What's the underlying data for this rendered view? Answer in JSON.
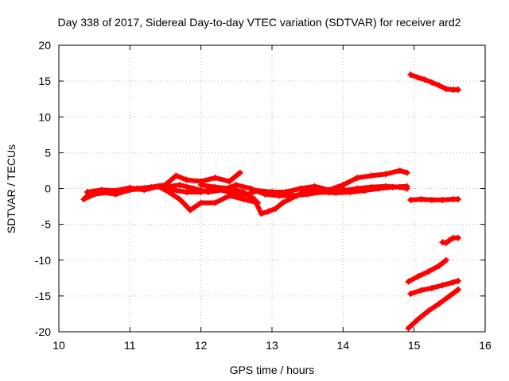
{
  "chart_data": {
    "type": "scatter",
    "title": "Day 338 of 2017, Sidereal Day-to-day VTEC variation (SDTVAR) for receiver ard2",
    "xlabel": "GPS time / hours",
    "ylabel": "SDTVAR / TECUs",
    "xlim": [
      10,
      16
    ],
    "ylim": [
      -20,
      20
    ],
    "xticks": [
      "10",
      "11",
      "12",
      "13",
      "14",
      "15",
      "16"
    ],
    "yticks": [
      "20",
      "15",
      "10",
      "5",
      "0",
      "-5",
      "-10",
      "-15",
      "-20"
    ],
    "grid": true,
    "marker": "plus",
    "color": "#ff0000",
    "series": [
      {
        "x": [
          10.35,
          10.5,
          10.7,
          10.9,
          11.1,
          11.3,
          11.5,
          11.65,
          11.8,
          12.0,
          12.2,
          12.4,
          12.55
        ],
        "y": [
          -1.5,
          -0.8,
          -0.5,
          -0.2,
          0.0,
          0.2,
          0.5,
          1.8,
          1.2,
          1.0,
          1.5,
          1.0,
          2.2
        ]
      },
      {
        "x": [
          10.4,
          10.6,
          10.8,
          11.0,
          11.2,
          11.4,
          11.55,
          11.7,
          11.85,
          12.0,
          12.2,
          12.4,
          12.6,
          12.8
        ],
        "y": [
          -0.5,
          -0.2,
          -0.3,
          0.1,
          -0.2,
          0.3,
          -0.5,
          -1.5,
          -3.0,
          -2.0,
          -2.0,
          -1.0,
          -1.5,
          -2.0
        ]
      },
      {
        "x": [
          10.4,
          10.6,
          10.8,
          11.0,
          11.2,
          11.4,
          11.6,
          11.8,
          12.0,
          12.2,
          12.4,
          12.6,
          12.8,
          13.0,
          13.2,
          13.4,
          13.6,
          13.8,
          14.0
        ],
        "y": [
          -1.0,
          -0.5,
          -0.8,
          -0.2,
          0.0,
          0.3,
          -0.2,
          -0.5,
          -0.5,
          0.0,
          -0.5,
          -1.0,
          -0.3,
          -0.5,
          -0.5,
          0.0,
          -0.2,
          -0.3,
          0.0
        ]
      },
      {
        "x": [
          11.5,
          11.7,
          11.9,
          12.1,
          12.3,
          12.5,
          12.7,
          12.9,
          13.1,
          13.3,
          13.5,
          13.7,
          13.9,
          14.1,
          14.3,
          14.5,
          14.7,
          14.9
        ],
        "y": [
          0.2,
          0.5,
          0.0,
          -0.5,
          -0.2,
          0.5,
          0.0,
          -0.8,
          -1.0,
          -1.0,
          -0.8,
          -0.5,
          -0.6,
          -0.5,
          -0.3,
          0.0,
          0.2,
          0.3
        ]
      },
      {
        "x": [
          12.0,
          12.2,
          12.4,
          12.6,
          12.75,
          12.85,
          12.95,
          13.05,
          13.15,
          13.25,
          13.35,
          13.45
        ],
        "y": [
          0.5,
          0.2,
          0.0,
          -0.5,
          -1.5,
          -3.5,
          -3.2,
          -2.8,
          -2.0,
          -1.5,
          -1.0,
          -0.5
        ]
      },
      {
        "x": [
          13.0,
          13.2,
          13.4,
          13.6,
          13.8,
          14.0,
          14.2,
          14.4,
          14.6,
          14.8,
          14.9
        ],
        "y": [
          -0.8,
          -0.5,
          0.0,
          0.3,
          -0.2,
          0.5,
          1.5,
          1.8,
          2.0,
          2.5,
          2.2
        ]
      },
      {
        "x": [
          13.8,
          14.0,
          14.2,
          14.4,
          14.6,
          14.8,
          14.9
        ],
        "y": [
          -0.5,
          -0.3,
          0.0,
          0.2,
          0.3,
          0.2,
          0.0
        ]
      },
      {
        "x": [
          14.95,
          15.05,
          15.15,
          15.25,
          15.35,
          15.45,
          15.55,
          15.62
        ],
        "y": [
          15.9,
          15.5,
          15.2,
          14.8,
          14.4,
          13.9,
          13.8,
          13.8
        ]
      },
      {
        "x": [
          14.95,
          15.1,
          15.25,
          15.4,
          15.55,
          15.62
        ],
        "y": [
          -1.6,
          -1.5,
          -1.6,
          -1.6,
          -1.5,
          -1.5
        ]
      },
      {
        "x": [
          15.4,
          15.45,
          15.5,
          15.55,
          15.62
        ],
        "y": [
          -7.5,
          -7.6,
          -7.2,
          -6.9,
          -6.9
        ]
      },
      {
        "x": [
          14.92,
          15.05,
          15.2,
          15.35,
          15.45
        ],
        "y": [
          -13.0,
          -12.3,
          -11.6,
          -10.8,
          -10.0
        ]
      },
      {
        "x": [
          14.95,
          15.1,
          15.25,
          15.4,
          15.55,
          15.62
        ],
        "y": [
          -14.7,
          -14.2,
          -13.9,
          -13.5,
          -13.1,
          -12.9
        ]
      },
      {
        "x": [
          14.92,
          15.05,
          15.2,
          15.35,
          15.5,
          15.62
        ],
        "y": [
          -19.5,
          -18.3,
          -17.1,
          -16.1,
          -15.0,
          -14.1
        ]
      }
    ]
  }
}
